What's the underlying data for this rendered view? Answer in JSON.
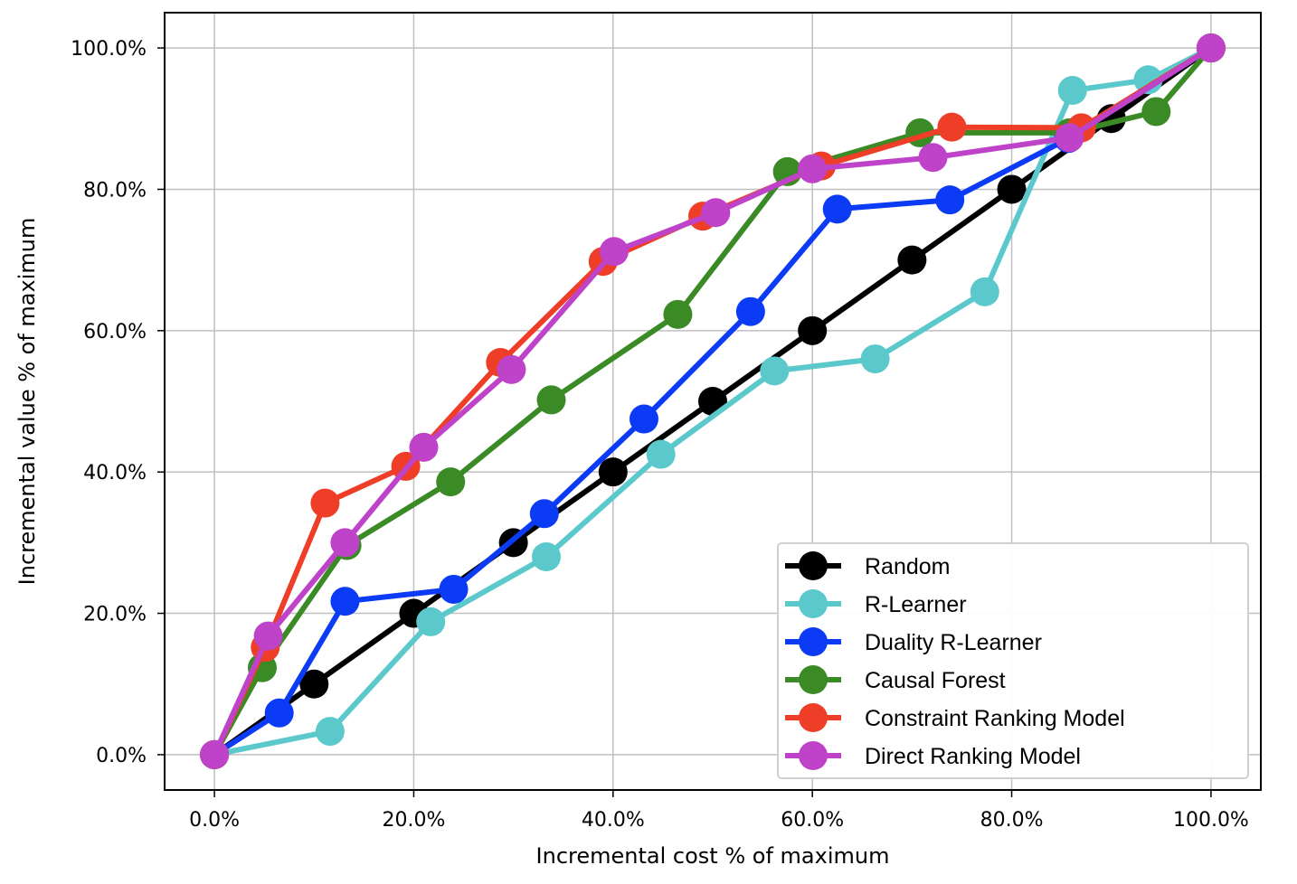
{
  "chart_data": {
    "type": "line",
    "title": "",
    "xlabel": "Incremental cost % of maximum",
    "ylabel": "Incremental value % of maximum",
    "xlim": [
      -0.05,
      1.05
    ],
    "ylim": [
      -0.05,
      1.05
    ],
    "x_ticks": [
      0,
      0.2,
      0.4,
      0.6,
      0.8,
      1.0
    ],
    "x_tick_labels": [
      "0.0%",
      "20.0%",
      "40.0%",
      "60.0%",
      "80.0%",
      "100.0%"
    ],
    "y_ticks": [
      0,
      0.2,
      0.4,
      0.6,
      0.8,
      1.0
    ],
    "y_tick_labels": [
      "0.0%",
      "20.0%",
      "40.0%",
      "60.0%",
      "80.0%",
      "100.0%"
    ],
    "grid": true,
    "legend_position": "bottom-right",
    "series": [
      {
        "name": "Random",
        "color": "#000000",
        "x": [
          0,
          0.1,
          0.2,
          0.3,
          0.4,
          0.5,
          0.6,
          0.7,
          0.8,
          0.9,
          1.0
        ],
        "y": [
          0,
          0.1,
          0.2,
          0.3,
          0.4,
          0.5,
          0.6,
          0.7,
          0.8,
          0.9,
          1.0
        ]
      },
      {
        "name": "R-Learner",
        "color": "#5BC8CB",
        "x": [
          0,
          0.116,
          0.217,
          0.333,
          0.448,
          0.562,
          0.663,
          0.773,
          0.861,
          0.937,
          1.0
        ],
        "y": [
          0,
          0.033,
          0.188,
          0.28,
          0.425,
          0.543,
          0.56,
          0.655,
          0.94,
          0.955,
          1.0
        ]
      },
      {
        "name": "Duality R-Learner",
        "color": "#0B3BF5",
        "x": [
          0,
          0.065,
          0.131,
          0.24,
          0.331,
          0.431,
          0.538,
          0.625,
          0.738,
          0.857,
          1.0
        ],
        "y": [
          0,
          0.059,
          0.217,
          0.234,
          0.341,
          0.475,
          0.627,
          0.772,
          0.785,
          0.872,
          1.0
        ]
      },
      {
        "name": "Causal Forest",
        "color": "#3A8A26",
        "x": [
          0,
          0.048,
          0.133,
          0.237,
          0.338,
          0.465,
          0.575,
          0.708,
          0.858,
          0.945,
          1.0
        ],
        "y": [
          0,
          0.123,
          0.296,
          0.386,
          0.502,
          0.623,
          0.825,
          0.88,
          0.88,
          0.91,
          1.0
        ]
      },
      {
        "name": "Constraint Ranking Model",
        "color": "#EE3E28",
        "x": [
          0,
          0.051,
          0.111,
          0.192,
          0.287,
          0.39,
          0.49,
          0.609,
          0.74,
          0.87,
          1.0
        ],
        "y": [
          0,
          0.152,
          0.356,
          0.408,
          0.555,
          0.698,
          0.762,
          0.833,
          0.888,
          0.887,
          1.0
        ]
      },
      {
        "name": "Direct Ranking Model",
        "color": "#BF43C8",
        "x": [
          0,
          0.054,
          0.131,
          0.21,
          0.298,
          0.401,
          0.503,
          0.6,
          0.721,
          0.858,
          1.0
        ],
        "y": [
          0,
          0.168,
          0.3,
          0.435,
          0.545,
          0.712,
          0.767,
          0.829,
          0.845,
          0.873,
          1.0
        ]
      }
    ]
  }
}
